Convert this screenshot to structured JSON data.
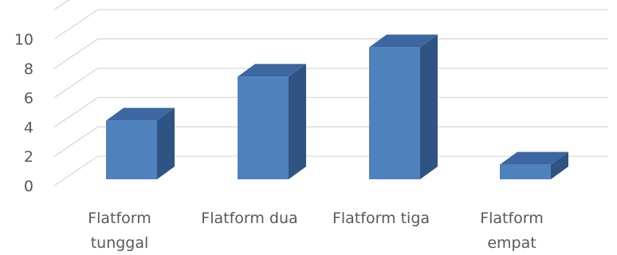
{
  "chart_data": {
    "type": "bar",
    "style": "3d-column",
    "categories": [
      [
        "Flatform",
        "tunggal"
      ],
      [
        "Flatform dua"
      ],
      [
        "Flatform tiga"
      ],
      [
        "Flatform",
        "empat"
      ]
    ],
    "values": [
      4,
      7,
      9,
      1
    ],
    "ylim": [
      0,
      10
    ],
    "yticks": [
      0,
      2,
      4,
      6,
      8,
      10
    ],
    "grid": true,
    "legend": "none",
    "title": "",
    "xlabel": "",
    "ylabel": "",
    "colors": {
      "front": "#4f81bd",
      "side": "#2f5382",
      "top": "#3c67a0",
      "grid": "#d9d9d9",
      "text": "#595959"
    }
  }
}
